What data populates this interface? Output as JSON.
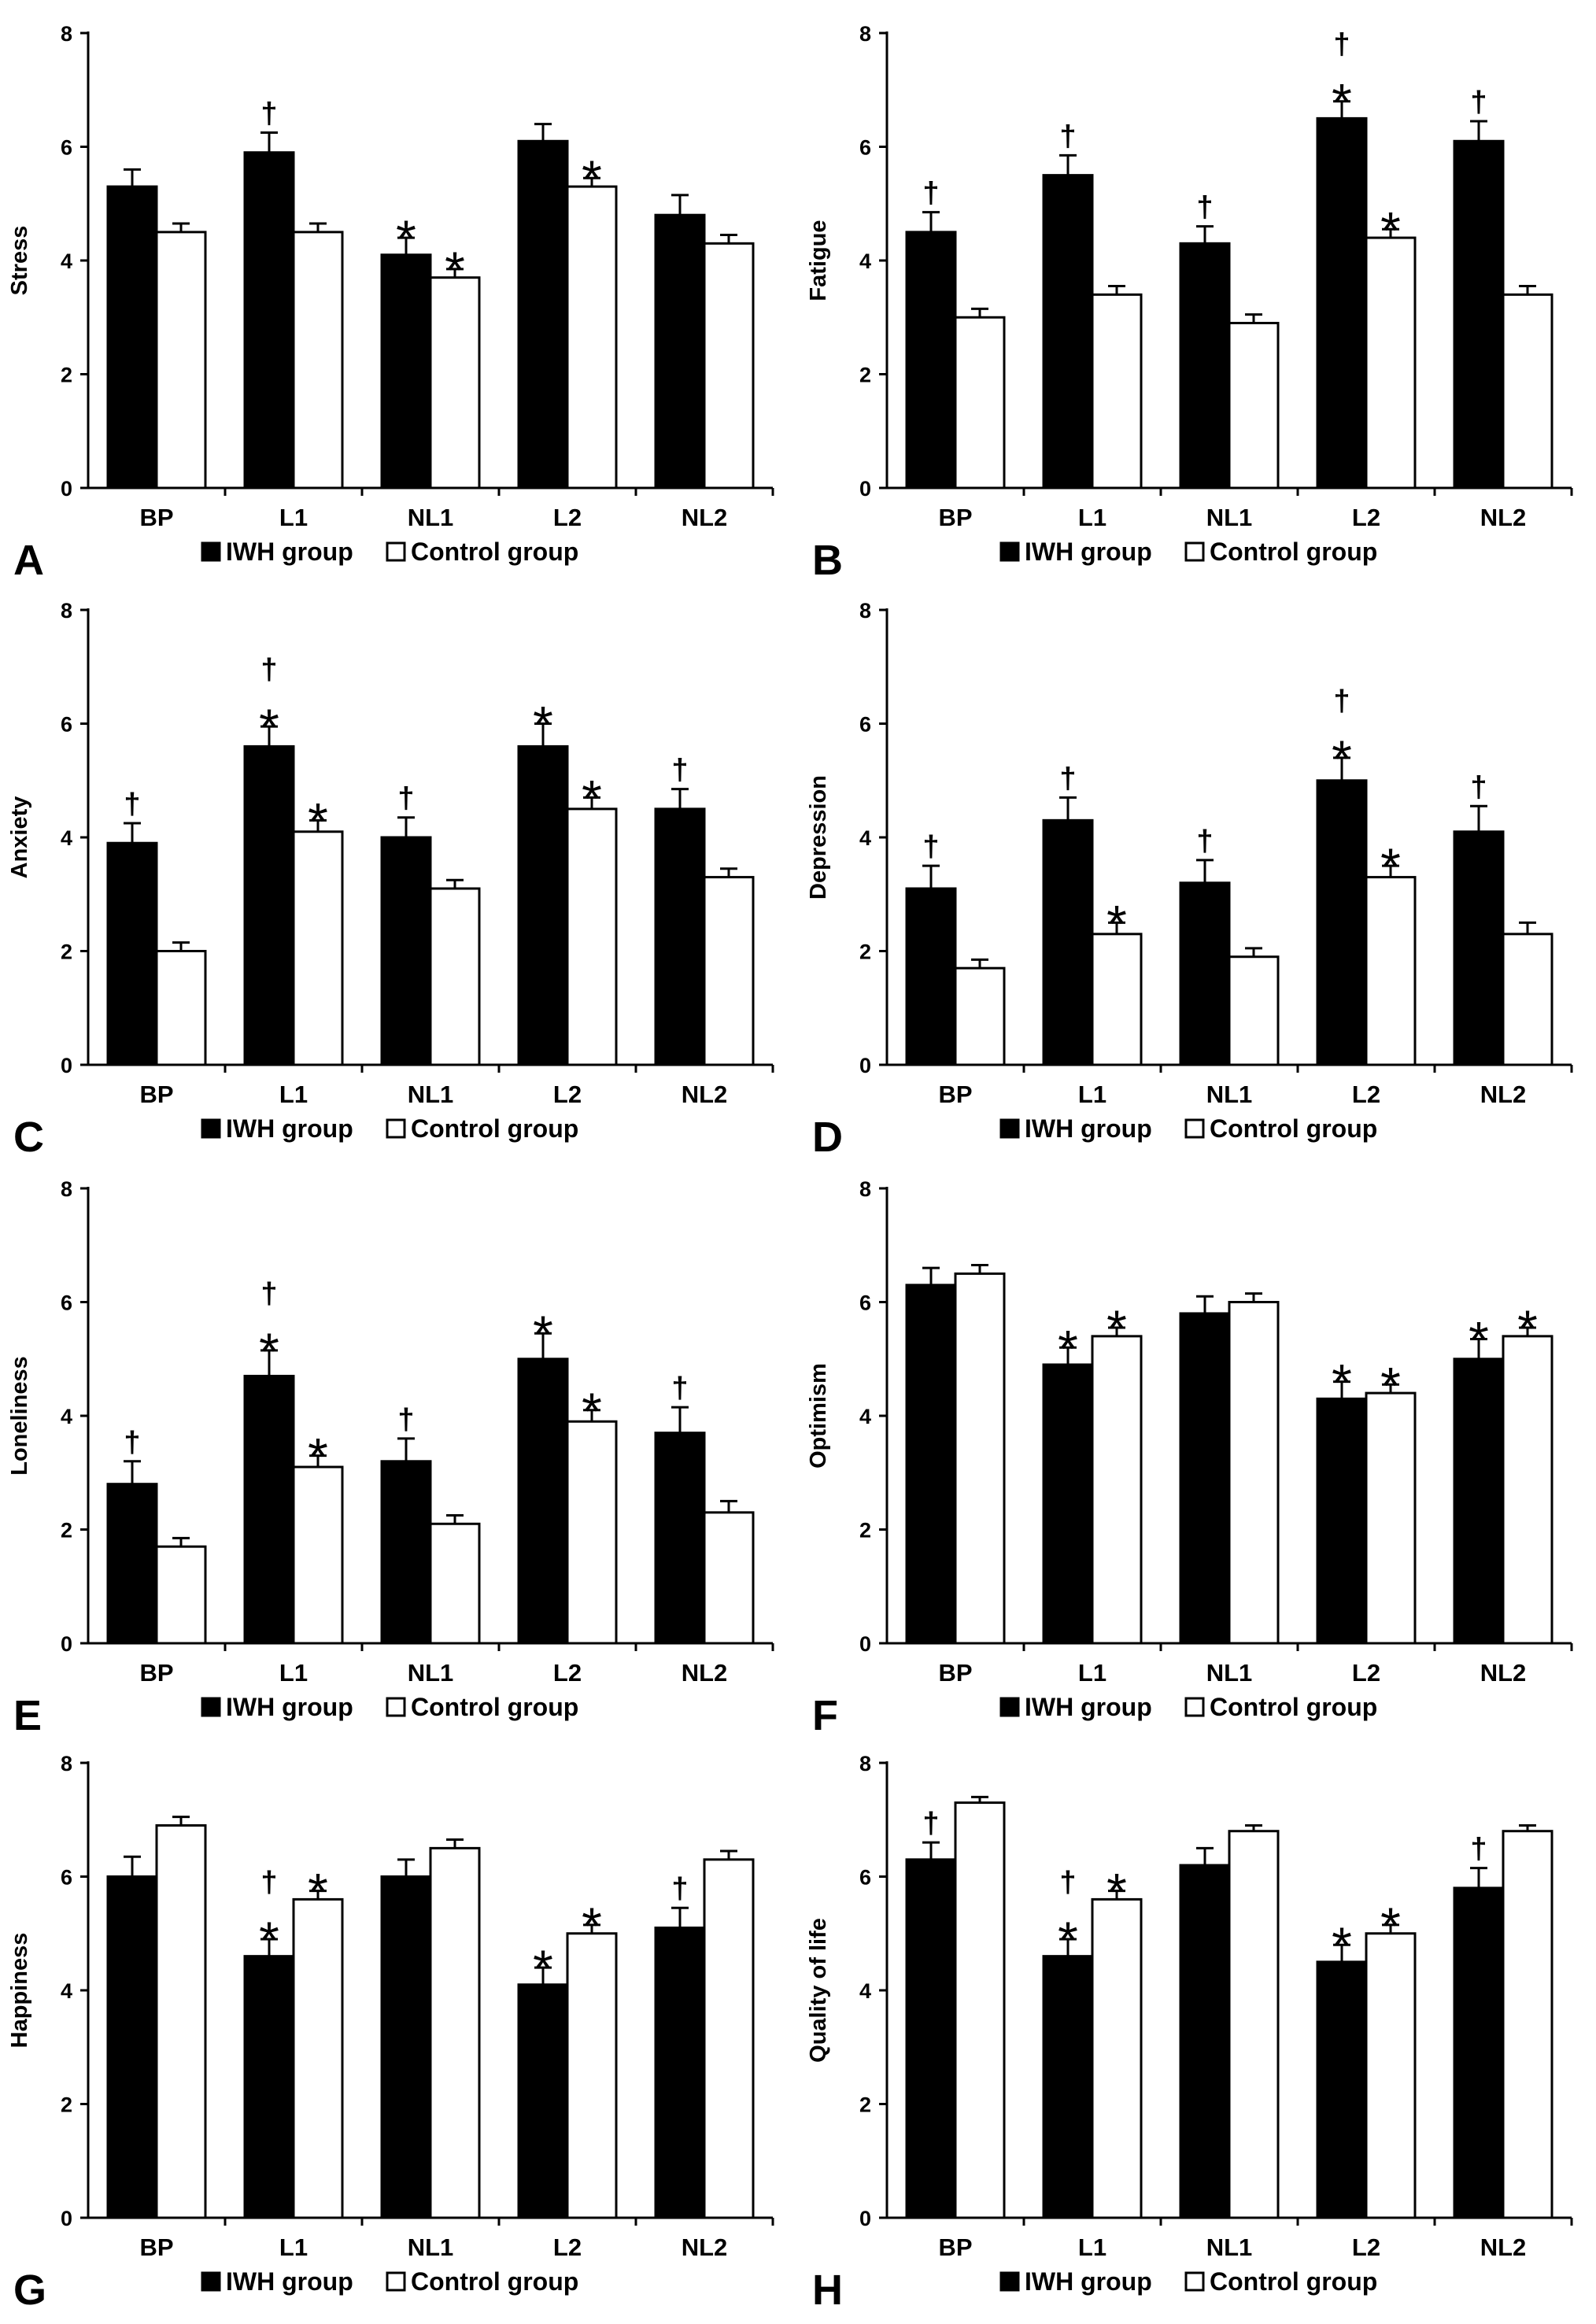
{
  "figure": {
    "legend": {
      "iwh": "IWH group",
      "control": "Control group"
    },
    "colors": {
      "iwh": "#000000",
      "control": "#ffffff",
      "axis": "#000000"
    }
  },
  "chart_data": [
    {
      "type": "bar",
      "panel": "A",
      "ylabel": "Stress",
      "ylim": [
        0,
        8
      ],
      "yticks": [
        0,
        2,
        4,
        6,
        8
      ],
      "categories": [
        "BP",
        "L1",
        "NL1",
        "L2",
        "NL2"
      ],
      "series": [
        {
          "name": "IWH group",
          "values": [
            5.3,
            5.9,
            4.1,
            6.1,
            4.8
          ],
          "errors": [
            0.3,
            0.35,
            0.3,
            0.3,
            0.35
          ],
          "marks": [
            "",
            "†",
            "*",
            "",
            ""
          ]
        },
        {
          "name": "Control group",
          "values": [
            4.5,
            4.5,
            3.7,
            5.3,
            4.3
          ],
          "errors": [
            0.15,
            0.15,
            0.15,
            0.15,
            0.15
          ],
          "marks": [
            "",
            "",
            "*",
            "*",
            ""
          ]
        }
      ]
    },
    {
      "type": "bar",
      "panel": "B",
      "ylabel": "Fatigue",
      "ylim": [
        0,
        8
      ],
      "yticks": [
        0,
        2,
        4,
        6,
        8
      ],
      "categories": [
        "BP",
        "L1",
        "NL1",
        "L2",
        "NL2"
      ],
      "series": [
        {
          "name": "IWH group",
          "values": [
            4.5,
            5.5,
            4.3,
            6.5,
            6.1
          ],
          "errors": [
            0.35,
            0.35,
            0.3,
            0.3,
            0.35
          ],
          "marks": [
            "†",
            "†",
            "†",
            "*†",
            "†"
          ]
        },
        {
          "name": "Control group",
          "values": [
            3.0,
            3.4,
            2.9,
            4.4,
            3.4
          ],
          "errors": [
            0.15,
            0.15,
            0.15,
            0.15,
            0.15
          ],
          "marks": [
            "",
            "",
            "",
            "*",
            ""
          ]
        }
      ]
    },
    {
      "type": "bar",
      "panel": "C",
      "ylabel": "Anxiety",
      "ylim": [
        0,
        8
      ],
      "yticks": [
        0,
        2,
        4,
        6,
        8
      ],
      "categories": [
        "BP",
        "L1",
        "NL1",
        "L2",
        "NL2"
      ],
      "series": [
        {
          "name": "IWH group",
          "values": [
            3.9,
            5.6,
            4.0,
            5.6,
            4.5
          ],
          "errors": [
            0.35,
            0.35,
            0.35,
            0.4,
            0.35
          ],
          "marks": [
            "†",
            "*†",
            "†",
            "*",
            "†"
          ]
        },
        {
          "name": "Control group",
          "values": [
            2.0,
            4.1,
            3.1,
            4.5,
            3.3
          ],
          "errors": [
            0.15,
            0.2,
            0.15,
            0.2,
            0.15
          ],
          "marks": [
            "",
            "*",
            "",
            "*",
            ""
          ]
        }
      ]
    },
    {
      "type": "bar",
      "panel": "D",
      "ylabel": "Depression",
      "ylim": [
        0,
        8
      ],
      "yticks": [
        0,
        2,
        4,
        6,
        8
      ],
      "categories": [
        "BP",
        "L1",
        "NL1",
        "L2",
        "NL2"
      ],
      "series": [
        {
          "name": "IWH group",
          "values": [
            3.1,
            4.3,
            3.2,
            5.0,
            4.1
          ],
          "errors": [
            0.4,
            0.4,
            0.4,
            0.4,
            0.45
          ],
          "marks": [
            "†",
            "†",
            "†",
            "*†",
            "†"
          ]
        },
        {
          "name": "Control group",
          "values": [
            1.7,
            2.3,
            1.9,
            3.3,
            2.3
          ],
          "errors": [
            0.15,
            0.2,
            0.15,
            0.2,
            0.2
          ],
          "marks": [
            "",
            "*",
            "",
            "*",
            ""
          ]
        }
      ]
    },
    {
      "type": "bar",
      "panel": "E",
      "ylabel": "Loneliness",
      "ylim": [
        0,
        8
      ],
      "yticks": [
        0,
        2,
        4,
        6,
        8
      ],
      "categories": [
        "BP",
        "L1",
        "NL1",
        "L2",
        "NL2"
      ],
      "series": [
        {
          "name": "IWH group",
          "values": [
            2.8,
            4.7,
            3.2,
            5.0,
            3.7
          ],
          "errors": [
            0.4,
            0.45,
            0.4,
            0.45,
            0.45
          ],
          "marks": [
            "†",
            "*†",
            "†",
            "*",
            "†"
          ]
        },
        {
          "name": "Control group",
          "values": [
            1.7,
            3.1,
            2.1,
            3.9,
            2.3
          ],
          "errors": [
            0.15,
            0.2,
            0.15,
            0.2,
            0.2
          ],
          "marks": [
            "",
            "*",
            "",
            "*",
            ""
          ]
        }
      ]
    },
    {
      "type": "bar",
      "panel": "F",
      "ylabel": "Optimism",
      "ylim": [
        0,
        8
      ],
      "yticks": [
        0,
        2,
        4,
        6,
        8
      ],
      "categories": [
        "BP",
        "L1",
        "NL1",
        "L2",
        "NL2"
      ],
      "series": [
        {
          "name": "IWH group",
          "values": [
            6.3,
            4.9,
            5.8,
            4.3,
            5.0
          ],
          "errors": [
            0.3,
            0.3,
            0.3,
            0.3,
            0.35
          ],
          "marks": [
            "",
            "*",
            "",
            "*",
            "*"
          ]
        },
        {
          "name": "Control group",
          "values": [
            6.5,
            5.4,
            6.0,
            4.4,
            5.4
          ],
          "errors": [
            0.15,
            0.15,
            0.15,
            0.15,
            0.15
          ],
          "marks": [
            "",
            "*",
            "",
            "*",
            "*"
          ]
        }
      ]
    },
    {
      "type": "bar",
      "panel": "G",
      "ylabel": "Happiness",
      "ylim": [
        0,
        8
      ],
      "yticks": [
        0,
        2,
        4,
        6,
        8
      ],
      "categories": [
        "BP",
        "L1",
        "NL1",
        "L2",
        "NL2"
      ],
      "series": [
        {
          "name": "IWH group",
          "values": [
            6.0,
            4.6,
            6.0,
            4.1,
            5.1
          ],
          "errors": [
            0.35,
            0.3,
            0.3,
            0.3,
            0.35
          ],
          "marks": [
            "",
            "*†",
            "",
            "*",
            "†"
          ]
        },
        {
          "name": "Control group",
          "values": [
            6.9,
            5.6,
            6.5,
            5.0,
            6.3
          ],
          "errors": [
            0.15,
            0.15,
            0.15,
            0.15,
            0.15
          ],
          "marks": [
            "",
            "*",
            "",
            "*",
            ""
          ]
        }
      ]
    },
    {
      "type": "bar",
      "panel": "H",
      "ylabel": "Quality of life",
      "ylim": [
        0,
        8
      ],
      "yticks": [
        0,
        2,
        4,
        6,
        8
      ],
      "categories": [
        "BP",
        "L1",
        "NL1",
        "L2",
        "NL2"
      ],
      "series": [
        {
          "name": "IWH group",
          "values": [
            6.3,
            4.6,
            6.2,
            4.5,
            5.8
          ],
          "errors": [
            0.3,
            0.3,
            0.3,
            0.3,
            0.35
          ],
          "marks": [
            "†",
            "*†",
            "",
            "*",
            "†"
          ]
        },
        {
          "name": "Control group",
          "values": [
            7.3,
            5.6,
            6.8,
            5.0,
            6.8
          ],
          "errors": [
            0.1,
            0.15,
            0.1,
            0.15,
            0.1
          ],
          "marks": [
            "",
            "*",
            "",
            "*",
            ""
          ]
        }
      ]
    }
  ]
}
